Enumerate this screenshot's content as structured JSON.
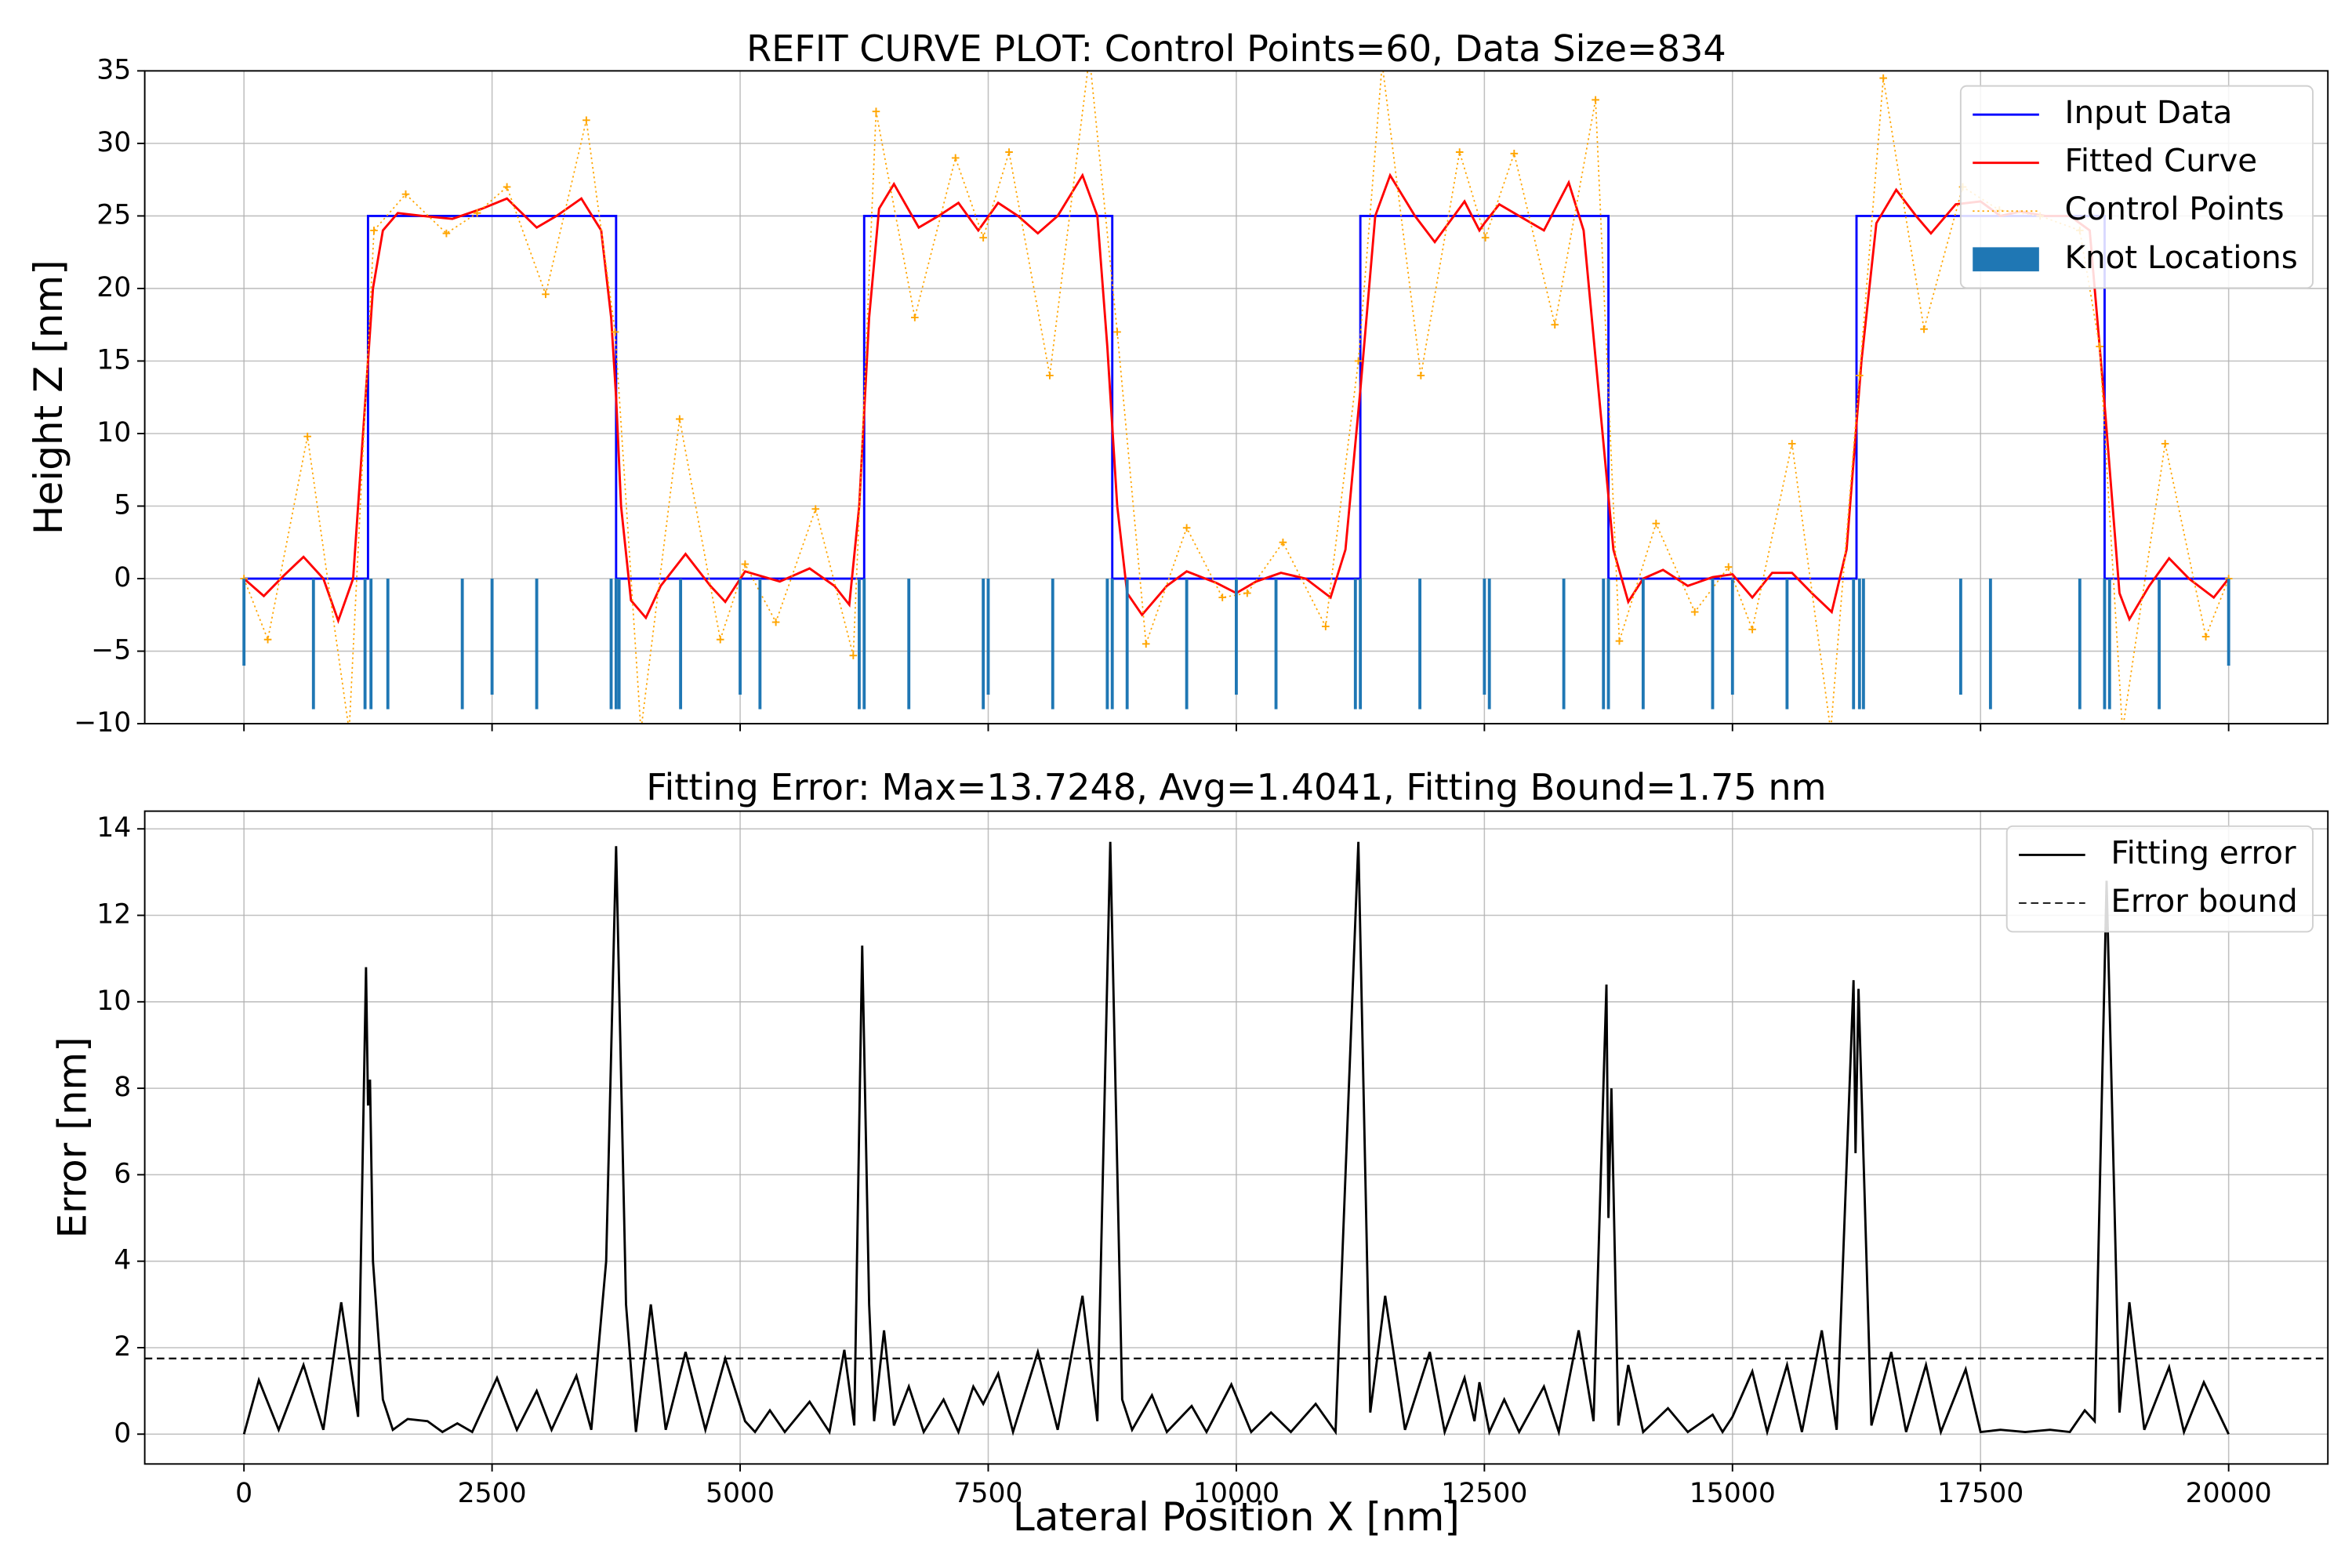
{
  "chart_data": [
    {
      "type": "line",
      "title": "REFIT CURVE PLOT: Control Points=60, Data Size=834",
      "ylabel": "Height Z [nm]",
      "xlim": [
        -1000,
        21000
      ],
      "ylim": [
        -10,
        35
      ],
      "yticks": [
        {
          "value": -10,
          "label": "−10"
        },
        {
          "value": -5,
          "label": "−5"
        },
        0,
        5,
        10,
        15,
        20,
        25,
        30,
        35
      ],
      "grid": true,
      "legend": "upper right",
      "series": [
        {
          "name": "Input Data",
          "color": "#0000ff",
          "x": [
            0,
            1250,
            1250,
            3750,
            3750,
            6250,
            6250,
            8750,
            8750,
            11250,
            11250,
            13750,
            13750,
            16250,
            16250,
            18750,
            18750,
            20000
          ],
          "values": [
            0,
            0,
            25,
            25,
            0,
            0,
            25,
            25,
            0,
            0,
            25,
            25,
            0,
            0,
            25,
            25,
            0,
            0
          ]
        },
        {
          "name": "Fitted Curve",
          "color": "#ff0000",
          "x": [
            0,
            200,
            400,
            600,
            800,
            950,
            1100,
            1200,
            1300,
            1400,
            1550,
            1800,
            2100,
            2400,
            2650,
            2950,
            3150,
            3400,
            3600,
            3700,
            3750,
            3800,
            3900,
            4050,
            4200,
            4450,
            4700,
            4850,
            5050,
            5200,
            5400,
            5700,
            5950,
            6100,
            6200,
            6300,
            6400,
            6550,
            6800,
            7000,
            7200,
            7400,
            7600,
            7800,
            8000,
            8200,
            8450,
            8600,
            8700,
            8800,
            8900,
            9050,
            9300,
            9500,
            9800,
            10000,
            10200,
            10450,
            10700,
            10950,
            11100,
            11250,
            11400,
            11550,
            11800,
            12000,
            12300,
            12450,
            12500,
            12650,
            12900,
            13100,
            13350,
            13500,
            13650,
            13800,
            13950,
            14100,
            14300,
            14550,
            14800,
            15000,
            15200,
            15400,
            15600,
            15800,
            16000,
            16150,
            16300,
            16450,
            16650,
            16850,
            17000,
            17250,
            17500,
            17700,
            17900,
            18150,
            18400,
            18600,
            18750,
            18900,
            19000,
            19200,
            19400,
            19600,
            19850,
            20000
          ],
          "values": [
            0,
            -1.2,
            0.2,
            1.5,
            0,
            -2.9,
            0,
            10,
            20,
            24,
            25.2,
            25,
            24.8,
            25.5,
            26.2,
            24.2,
            25,
            26.2,
            24,
            18,
            12.5,
            5,
            -1.5,
            -2.7,
            -0.5,
            1.7,
            -0.5,
            -1.6,
            0.5,
            0.2,
            -0.2,
            0.7,
            -0.5,
            -1.8,
            5,
            18,
            25.5,
            27.2,
            24.2,
            25,
            25.9,
            24,
            25.9,
            25,
            23.8,
            25,
            27.8,
            25,
            16,
            5,
            -1,
            -2.5,
            -0.5,
            0.5,
            -0.3,
            -1,
            -0.2,
            0.4,
            0,
            -1.3,
            2,
            13,
            25,
            27.8,
            25,
            23.2,
            26,
            24,
            24.5,
            25.8,
            24.8,
            24,
            27.3,
            24,
            13,
            2,
            -1.6,
            0,
            0.6,
            -0.5,
            0.1,
            0.3,
            -1.3,
            0.4,
            0.4,
            -1,
            -2.3,
            2,
            15,
            24.5,
            26.8,
            25,
            23.8,
            25.8,
            26,
            25,
            25.3,
            25,
            25,
            24,
            12,
            -1,
            -2.8,
            -0.5,
            1.4,
            0,
            -1.3,
            0
          ]
        },
        {
          "name": "Control Points",
          "color": "#ffa500",
          "style": "dotted",
          "marker": "+",
          "x": [
            0,
            240,
            640,
            1060,
            1310,
            1630,
            2040,
            2350,
            2650,
            3040,
            3450,
            3740,
            4000,
            4390,
            4800,
            5050,
            5360,
            5760,
            6140,
            6370,
            6760,
            7170,
            7450,
            7710,
            8120,
            8520,
            8800,
            9090,
            9500,
            9860,
            10110,
            10470,
            10900,
            11230,
            11470,
            11860,
            12250,
            12510,
            12800,
            13210,
            13620,
            13860,
            14230,
            14620,
            14960,
            15200,
            15600,
            15990,
            16280,
            16520,
            16930,
            17320,
            17690,
            18100,
            18500,
            18700,
            18930,
            19360,
            19770,
            20000
          ],
          "values": [
            0,
            -4.2,
            9.8,
            -10.5,
            24,
            26.5,
            23.8,
            25.2,
            27,
            19.6,
            31.6,
            17,
            -10.5,
            11,
            -4.2,
            1,
            -3,
            4.8,
            -5.3,
            32.2,
            18,
            29,
            23.5,
            29.4,
            14,
            36,
            17,
            -4.5,
            3.5,
            -1.3,
            -1,
            2.5,
            -3.3,
            15,
            35.5,
            14,
            29.4,
            23.5,
            29.3,
            17.5,
            33,
            -4.3,
            3.8,
            -2.3,
            0.8,
            -3.5,
            9.3,
            -10.5,
            14,
            34.5,
            17.2,
            27,
            25.4,
            25,
            24,
            16,
            -10.5,
            9.3,
            -4,
            0
          ]
        },
        {
          "name": "Knot Locations",
          "color": "#1f77b4",
          "type": "bar",
          "x": [
            0,
            700,
            1220,
            1280,
            1450,
            2200,
            2500,
            2950,
            3700,
            3750,
            3780,
            4400,
            5000,
            5200,
            6200,
            6250,
            6700,
            7450,
            7500,
            8150,
            8700,
            8750,
            8900,
            9500,
            10000,
            10400,
            11200,
            11250,
            11850,
            12500,
            12550,
            13300,
            13700,
            13750,
            14100,
            14800,
            15000,
            15550,
            16220,
            16280,
            16320,
            17300,
            17600,
            18500,
            18750,
            18800,
            19300,
            20000
          ],
          "values": [
            -6,
            -9,
            -9,
            -9,
            -9,
            -9,
            -8,
            -9,
            -9,
            -9,
            -9,
            -9,
            -8,
            -9,
            -9,
            -9,
            -9,
            -9,
            -8,
            -9,
            -9,
            -9,
            -9,
            -9,
            -8,
            -9,
            -9,
            -9,
            -9,
            -8,
            -9,
            -9,
            -9,
            -9,
            -9,
            -9,
            -8,
            -9,
            -9,
            -9,
            -9,
            -8,
            -9,
            -9,
            -9,
            -9,
            -9,
            -6
          ]
        }
      ]
    },
    {
      "type": "line",
      "title": "Fitting Error: Max=13.7248, Avg=1.4041, Fitting Bound=1.75 nm",
      "xlabel": "Lateral Position X [nm]",
      "ylabel": "Error [nm]",
      "xlim": [
        -1000,
        21000
      ],
      "ylim": [
        -0.69,
        14.41
      ],
      "xticks": [
        0,
        2500,
        5000,
        7500,
        10000,
        12500,
        15000,
        17500,
        20000
      ],
      "yticks": [
        0,
        2,
        4,
        6,
        8,
        10,
        12,
        14
      ],
      "grid": true,
      "legend": "upper right",
      "series": [
        {
          "name": "Fitting error",
          "color": "#000000",
          "x": [
            0,
            150,
            350,
            600,
            800,
            980,
            1150,
            1230,
            1250,
            1270,
            1300,
            1400,
            1500,
            1650,
            1850,
            2000,
            2150,
            2300,
            2550,
            2750,
            2950,
            3100,
            3350,
            3500,
            3650,
            3750,
            3850,
            3950,
            4100,
            4250,
            4450,
            4650,
            4850,
            5050,
            5150,
            5300,
            5450,
            5700,
            5900,
            6050,
            6150,
            6230,
            6300,
            6350,
            6450,
            6550,
            6700,
            6850,
            7050,
            7200,
            7350,
            7450,
            7600,
            7750,
            8000,
            8200,
            8450,
            8600,
            8730,
            8850,
            8950,
            9150,
            9300,
            9550,
            9700,
            9950,
            10150,
            10350,
            10550,
            10800,
            11000,
            11230,
            11350,
            11500,
            11700,
            11950,
            12100,
            12300,
            12400,
            12450,
            12550,
            12700,
            12850,
            13100,
            13250,
            13450,
            13600,
            13730,
            13750,
            13780,
            13850,
            13950,
            14100,
            14350,
            14550,
            14800,
            14900,
            15000,
            15200,
            15350,
            15550,
            15700,
            15900,
            16050,
            16220,
            16240,
            16270,
            16400,
            16600,
            16750,
            16950,
            17100,
            17350,
            17500,
            17700,
            17950,
            18200,
            18400,
            18550,
            18650,
            18770,
            18900,
            19000,
            19150,
            19400,
            19550,
            19750,
            20000
          ],
          "values": [
            0,
            1.25,
            0.1,
            1.6,
            0.1,
            3.05,
            0.4,
            10.8,
            7.6,
            8.2,
            4,
            0.8,
            0.1,
            0.35,
            0.3,
            0.05,
            0.25,
            0.05,
            1.3,
            0.1,
            1,
            0.1,
            1.35,
            0.1,
            4,
            13.6,
            3,
            0.05,
            3,
            0.1,
            1.9,
            0.1,
            1.75,
            0.3,
            0.05,
            0.55,
            0.05,
            0.75,
            0.05,
            1.95,
            0.2,
            11.3,
            3,
            0.3,
            2.4,
            0.2,
            1.1,
            0.05,
            0.8,
            0.05,
            1.1,
            0.7,
            1.4,
            0.05,
            1.9,
            0.1,
            3.2,
            0.3,
            13.7,
            0.8,
            0.1,
            0.9,
            0.05,
            0.65,
            0.05,
            1.15,
            0.05,
            0.5,
            0.05,
            0.7,
            0.05,
            13.7,
            0.5,
            3.2,
            0.1,
            1.9,
            0.05,
            1.3,
            0.3,
            1.2,
            0.05,
            0.8,
            0.05,
            1.1,
            0.05,
            2.4,
            0.3,
            10.4,
            5,
            8,
            0.2,
            1.6,
            0.05,
            0.6,
            0.05,
            0.45,
            0.05,
            0.4,
            1.45,
            0.05,
            1.6,
            0.05,
            2.4,
            0.1,
            10.5,
            6.5,
            10.3,
            0.2,
            1.9,
            0.05,
            1.6,
            0.05,
            1.5,
            0.05,
            0.1,
            0.05,
            0.1,
            0.05,
            0.55,
            0.3,
            12.8,
            0.5,
            3.05,
            0.1,
            1.55,
            0.05,
            1.2,
            0
          ]
        },
        {
          "name": "Error bound",
          "color": "#000000",
          "type": "hline",
          "style": "dashed",
          "values": [
            1.75
          ]
        }
      ]
    }
  ]
}
